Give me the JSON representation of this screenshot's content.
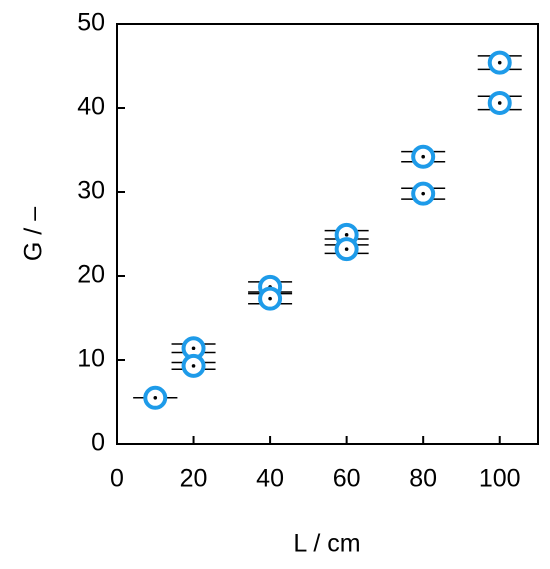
{
  "chart_data": {
    "type": "scatter",
    "xlabel": "L / cm",
    "ylabel": "G / –",
    "x": [
      10,
      20,
      20,
      40,
      40,
      60,
      60,
      80,
      80,
      100,
      100
    ],
    "values": [
      5.5,
      11.4,
      9.3,
      18.7,
      17.3,
      24.9,
      23.2,
      34.2,
      29.8,
      45.4,
      40.6
    ],
    "errors": [
      0,
      0.5,
      0.4,
      0.6,
      0.6,
      0.5,
      0.5,
      0.6,
      0.65,
      0.8,
      0.8
    ],
    "color": "#1e9be9",
    "xlim": [
      0,
      110
    ],
    "xticks": [
      0,
      20,
      40,
      60,
      80,
      100
    ],
    "ylim": [
      0,
      50
    ],
    "yticks": [
      0,
      10,
      20,
      30,
      40,
      50
    ]
  }
}
